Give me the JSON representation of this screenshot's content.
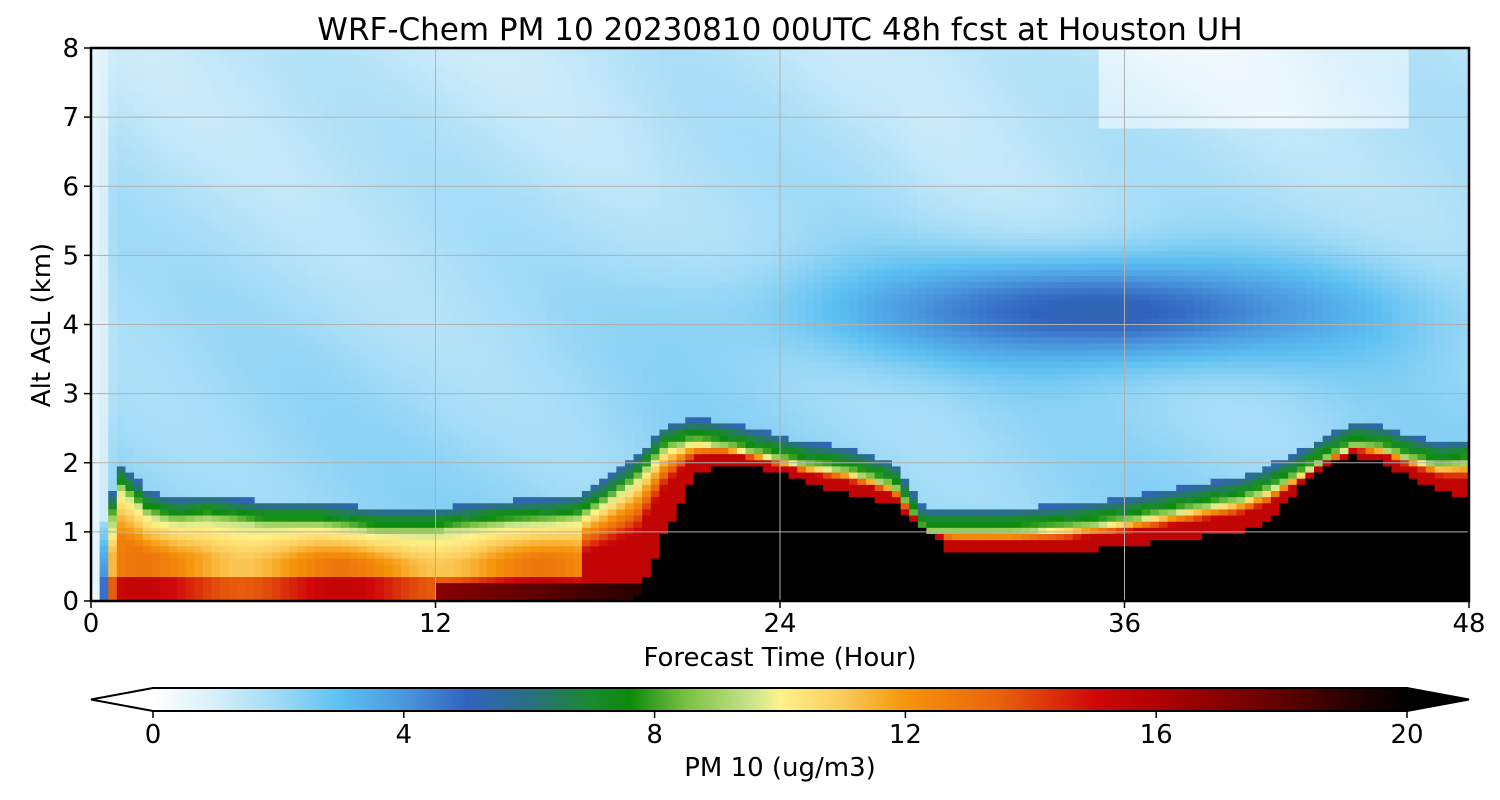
{
  "chart_data": {
    "type": "heatmap",
    "title": "WRF-Chem PM 10  20230810 00UTC 48h fcst at Houston UH",
    "xlabel": "Forecast Time (Hour)",
    "ylabel": "Alt AGL (km)",
    "xlim": [
      0,
      48
    ],
    "ylim": [
      0,
      8
    ],
    "xticks": [
      "0",
      "12",
      "24",
      "36",
      "48"
    ],
    "yticks": [
      "0",
      "1",
      "2",
      "3",
      "4",
      "5",
      "6",
      "7",
      "8"
    ],
    "grid": true,
    "colorbar": {
      "label": "PM 10  (ug/m3)",
      "range": [
        0,
        20
      ],
      "ticks": [
        "0",
        "4",
        "8",
        "12",
        "16",
        "20"
      ],
      "extend": "both",
      "orientation": "horizontal",
      "placement": "bottom"
    },
    "colormap": [
      [
        0,
        "#ffffff"
      ],
      [
        1,
        "#d6effa"
      ],
      [
        2,
        "#9fdaf6"
      ],
      [
        3,
        "#5cc0f2"
      ],
      [
        4,
        "#4a97dd"
      ],
      [
        5,
        "#3264bf"
      ],
      [
        6,
        "#2a6f82"
      ],
      [
        7,
        "#1a8a2e"
      ],
      [
        7.6,
        "#0b8a0b"
      ],
      [
        8.5,
        "#7ac143"
      ],
      [
        9.6,
        "#cde68e"
      ],
      [
        10,
        "#fff28a"
      ],
      [
        11,
        "#fbcb5a"
      ],
      [
        12,
        "#f6950a"
      ],
      [
        13.5,
        "#e9620d"
      ],
      [
        15,
        "#d00808"
      ],
      [
        16,
        "#b10000"
      ],
      [
        18,
        "#600000"
      ],
      [
        19.2,
        "#220000"
      ],
      [
        20,
        "#000000"
      ]
    ],
    "boundary_layer_top_km": {
      "hours": [
        0,
        0.5,
        1,
        2,
        3,
        4,
        6,
        8,
        10,
        12,
        14,
        16,
        17,
        18,
        19,
        20,
        21,
        22,
        23,
        24,
        25,
        26,
        27,
        28,
        29,
        30,
        32,
        34,
        36,
        38,
        40,
        41,
        42,
        43,
        44,
        45,
        46,
        47,
        48
      ],
      "values": [
        0,
        0.9,
        1.65,
        1.25,
        1.15,
        1.2,
        1.1,
        1.1,
        1.0,
        1.0,
        1.1,
        1.15,
        1.2,
        1.45,
        1.75,
        2.2,
        2.3,
        2.25,
        2.15,
        2.05,
        1.95,
        1.9,
        1.8,
        1.65,
        1.0,
        1.0,
        1.0,
        1.05,
        1.15,
        1.3,
        1.45,
        1.6,
        1.8,
        2.05,
        2.25,
        2.2,
        2.05,
        1.95,
        2.0
      ]
    },
    "saturated_core_top_km": {
      "hours": [
        19,
        20,
        21,
        22,
        23,
        24,
        25,
        26,
        27,
        28,
        30,
        32,
        34,
        36,
        38,
        40,
        41,
        42,
        43,
        44,
        45,
        46,
        47,
        48
      ],
      "values": [
        0,
        1.0,
        1.8,
        2.0,
        1.95,
        1.85,
        1.7,
        1.6,
        1.5,
        1.4,
        0.7,
        0.68,
        0.7,
        0.8,
        0.9,
        1.0,
        1.15,
        1.6,
        1.95,
        2.1,
        2.0,
        1.8,
        1.6,
        1.5
      ]
    },
    "aloft_minimum_layer": {
      "center_km": 4.2,
      "hours": [
        16,
        48
      ],
      "peak_hour": 35,
      "peak_value": 5.2
    }
  }
}
